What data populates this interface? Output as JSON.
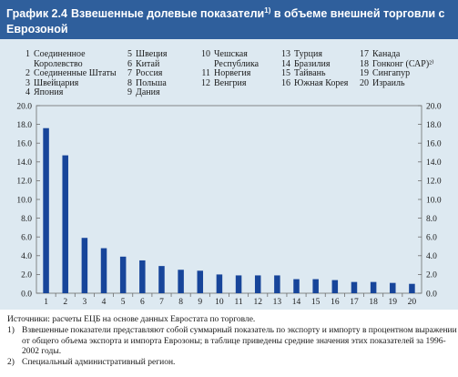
{
  "header": {
    "label": "График 2.4",
    "title": "Взвешенные долевые показатели",
    "title_sup": "1)",
    "title_rest": " в объеме внешней торговли с Еврозоной"
  },
  "legend": {
    "columns": [
      [
        {
          "n": "1",
          "name": "Соединенное Королевство",
          "lines": [
            "Соединенное",
            "Королевство"
          ]
        },
        {
          "n": "2",
          "name": "Соединенные Штаты",
          "lines": [
            "Соединенные Штаты"
          ]
        },
        {
          "n": "3",
          "name": "Швейцария",
          "lines": [
            "Швейцария"
          ]
        },
        {
          "n": "4",
          "name": "Япония",
          "lines": [
            "Япония"
          ]
        }
      ],
      [
        {
          "n": "5",
          "name": "Швеция",
          "lines": [
            "Швеция"
          ]
        },
        {
          "n": "6",
          "name": "Китай",
          "lines": [
            "Китай"
          ]
        },
        {
          "n": "7",
          "name": "Россия",
          "lines": [
            "Россия"
          ]
        },
        {
          "n": "8",
          "name": "Польша",
          "lines": [
            "Польша"
          ]
        },
        {
          "n": "9",
          "name": "Дания",
          "lines": [
            "Дания"
          ]
        }
      ],
      [
        {
          "n": "10",
          "name": "Чешская Республика",
          "lines": [
            "Чешская",
            "Республика"
          ]
        },
        {
          "n": "11",
          "name": "Норвегия",
          "lines": [
            "Норвегия"
          ]
        },
        {
          "n": "12",
          "name": "Венгрия",
          "lines": [
            "Венгрия"
          ]
        }
      ],
      [
        {
          "n": "13",
          "name": "Турция",
          "lines": [
            "Турция"
          ]
        },
        {
          "n": "14",
          "name": "Бразилия",
          "lines": [
            "Бразилия"
          ]
        },
        {
          "n": "15",
          "name": "Тайвань",
          "lines": [
            "Тайвань"
          ]
        },
        {
          "n": "16",
          "name": "Южная Корея",
          "lines": [
            "Южная Корея"
          ]
        }
      ],
      [
        {
          "n": "17",
          "name": "Канада",
          "lines": [
            "Канада"
          ]
        },
        {
          "n": "18",
          "name": "Гонконг (САР)²⁾",
          "lines": [
            "Гонконг (САР)²⁾"
          ]
        },
        {
          "n": "19",
          "name": "Сингапур",
          "lines": [
            "Сингапур"
          ]
        },
        {
          "n": "20",
          "name": "Израиль",
          "lines": [
            "Израиль"
          ]
        }
      ]
    ]
  },
  "chart_data": {
    "type": "bar",
    "categories": [
      "1",
      "2",
      "3",
      "4",
      "5",
      "6",
      "7",
      "8",
      "9",
      "10",
      "11",
      "12",
      "13",
      "14",
      "15",
      "16",
      "17",
      "18",
      "19",
      "20"
    ],
    "values": [
      17.6,
      14.7,
      5.9,
      4.8,
      3.9,
      3.5,
      2.9,
      2.5,
      2.4,
      2.0,
      1.9,
      1.9,
      1.9,
      1.5,
      1.5,
      1.4,
      1.2,
      1.2,
      1.1,
      1.0
    ],
    "ylim": [
      0,
      20
    ],
    "yticks": [
      "0.0",
      "2.0",
      "4.0",
      "6.0",
      "8.0",
      "10.0",
      "12.0",
      "14.0",
      "16.0",
      "18.0",
      "20.0"
    ],
    "tick_labels_both_sides": true,
    "bar_color": "#17459a",
    "grid": false
  },
  "footer": {
    "source": "Источники: расчеты ЕЦБ на основе данных Евростата по торговле.",
    "notes": [
      {
        "num": "1)",
        "text": "Взвешенные показатели представляют собой суммарный показатель по экспорту и импорту в процентном выражении от общего объема экспорта и импорта Еврозоны; в таблице приведены средние значения этих показателей за 1996-2002 годы."
      },
      {
        "num": "2)",
        "text": "Специальный административный регион."
      }
    ]
  }
}
